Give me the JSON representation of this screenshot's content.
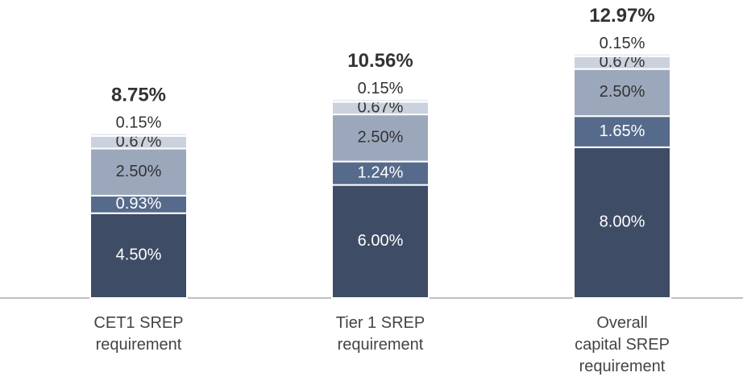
{
  "chart_data": {
    "type": "stacked_bar",
    "categories": [
      "CET1 SREP\nrequirement",
      "Tier 1 SREP\nrequirement",
      "Overall\ncapital SREP\nrequirement"
    ],
    "series": [
      {
        "color": "#3f4c65",
        "label_color": "#ffffff",
        "values": [
          4.5,
          6.0,
          8.0
        ],
        "value_labels": [
          "4.50%",
          "6.00%",
          "8.00%"
        ]
      },
      {
        "color": "#566a8b",
        "label_color": "#ffffff",
        "values": [
          0.93,
          1.24,
          1.65
        ],
        "value_labels": [
          "0.93%",
          "1.24%",
          "1.65%"
        ]
      },
      {
        "color": "#9ba8bc",
        "label_color": "#333333",
        "values": [
          2.5,
          2.5,
          2.5
        ],
        "value_labels": [
          "2.50%",
          "2.50%",
          "2.50%"
        ]
      },
      {
        "color": "#cbd2dd",
        "label_color": "#333333",
        "values": [
          0.67,
          0.67,
          0.67
        ],
        "value_labels": [
          "0.67%",
          "0.67%",
          "0.67%"
        ]
      },
      {
        "color": "#e4e8ee",
        "label_color": "#333333",
        "values": [
          0.15,
          0.15,
          0.15
        ],
        "value_labels": [
          "0.15%",
          "0.15%",
          "0.15%"
        ]
      }
    ],
    "totals": {
      "values": [
        8.75,
        10.56,
        12.97
      ],
      "value_labels": [
        "8.75%",
        "10.56%",
        "12.97%"
      ]
    },
    "ylim": [
      0,
      16
    ]
  }
}
